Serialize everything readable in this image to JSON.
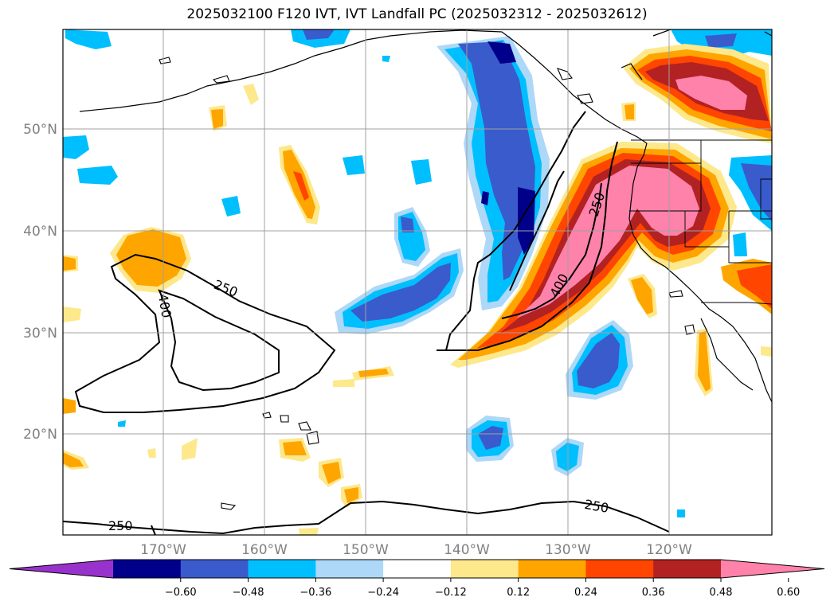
{
  "title": "2025032100 F120 IVT, IVT Landfall PC (2025032312 - 2025032612)",
  "lat_labels": [
    "50°N",
    "40°N",
    "30°N",
    "20°N"
  ],
  "lon_labels": [
    "170°W",
    "160°W",
    "150°W",
    "140°W",
    "130°W",
    "120°W"
  ],
  "contour_labels": [
    "250",
    "400",
    "250",
    "400",
    "250",
    "250"
  ],
  "colorbar": {
    "ticks": [
      "−0.60",
      "−0.48",
      "−0.36",
      "−0.24",
      "−0.12",
      "0.12",
      "0.24",
      "0.36",
      "0.48",
      "0.60"
    ],
    "colors": [
      "#9932cc",
      "#00008b",
      "#3a5bcc",
      "#00bfff",
      "#add8f7",
      "#ffffff",
      "#fde88b",
      "#ffa500",
      "#ff4500",
      "#b22222",
      "#ff82ab"
    ]
  },
  "colors": {
    "strong_negative": "#00008b",
    "mid_negative": "#3a5bcc",
    "light_negative": "#00bfff",
    "weak_negative": "#add8f7",
    "weak_positive": "#fde88b",
    "mid_positive": "#ffa500",
    "strong_positive": "#ff4500",
    "stronger_positive": "#b22222",
    "max_positive": "#ff82ab"
  }
}
